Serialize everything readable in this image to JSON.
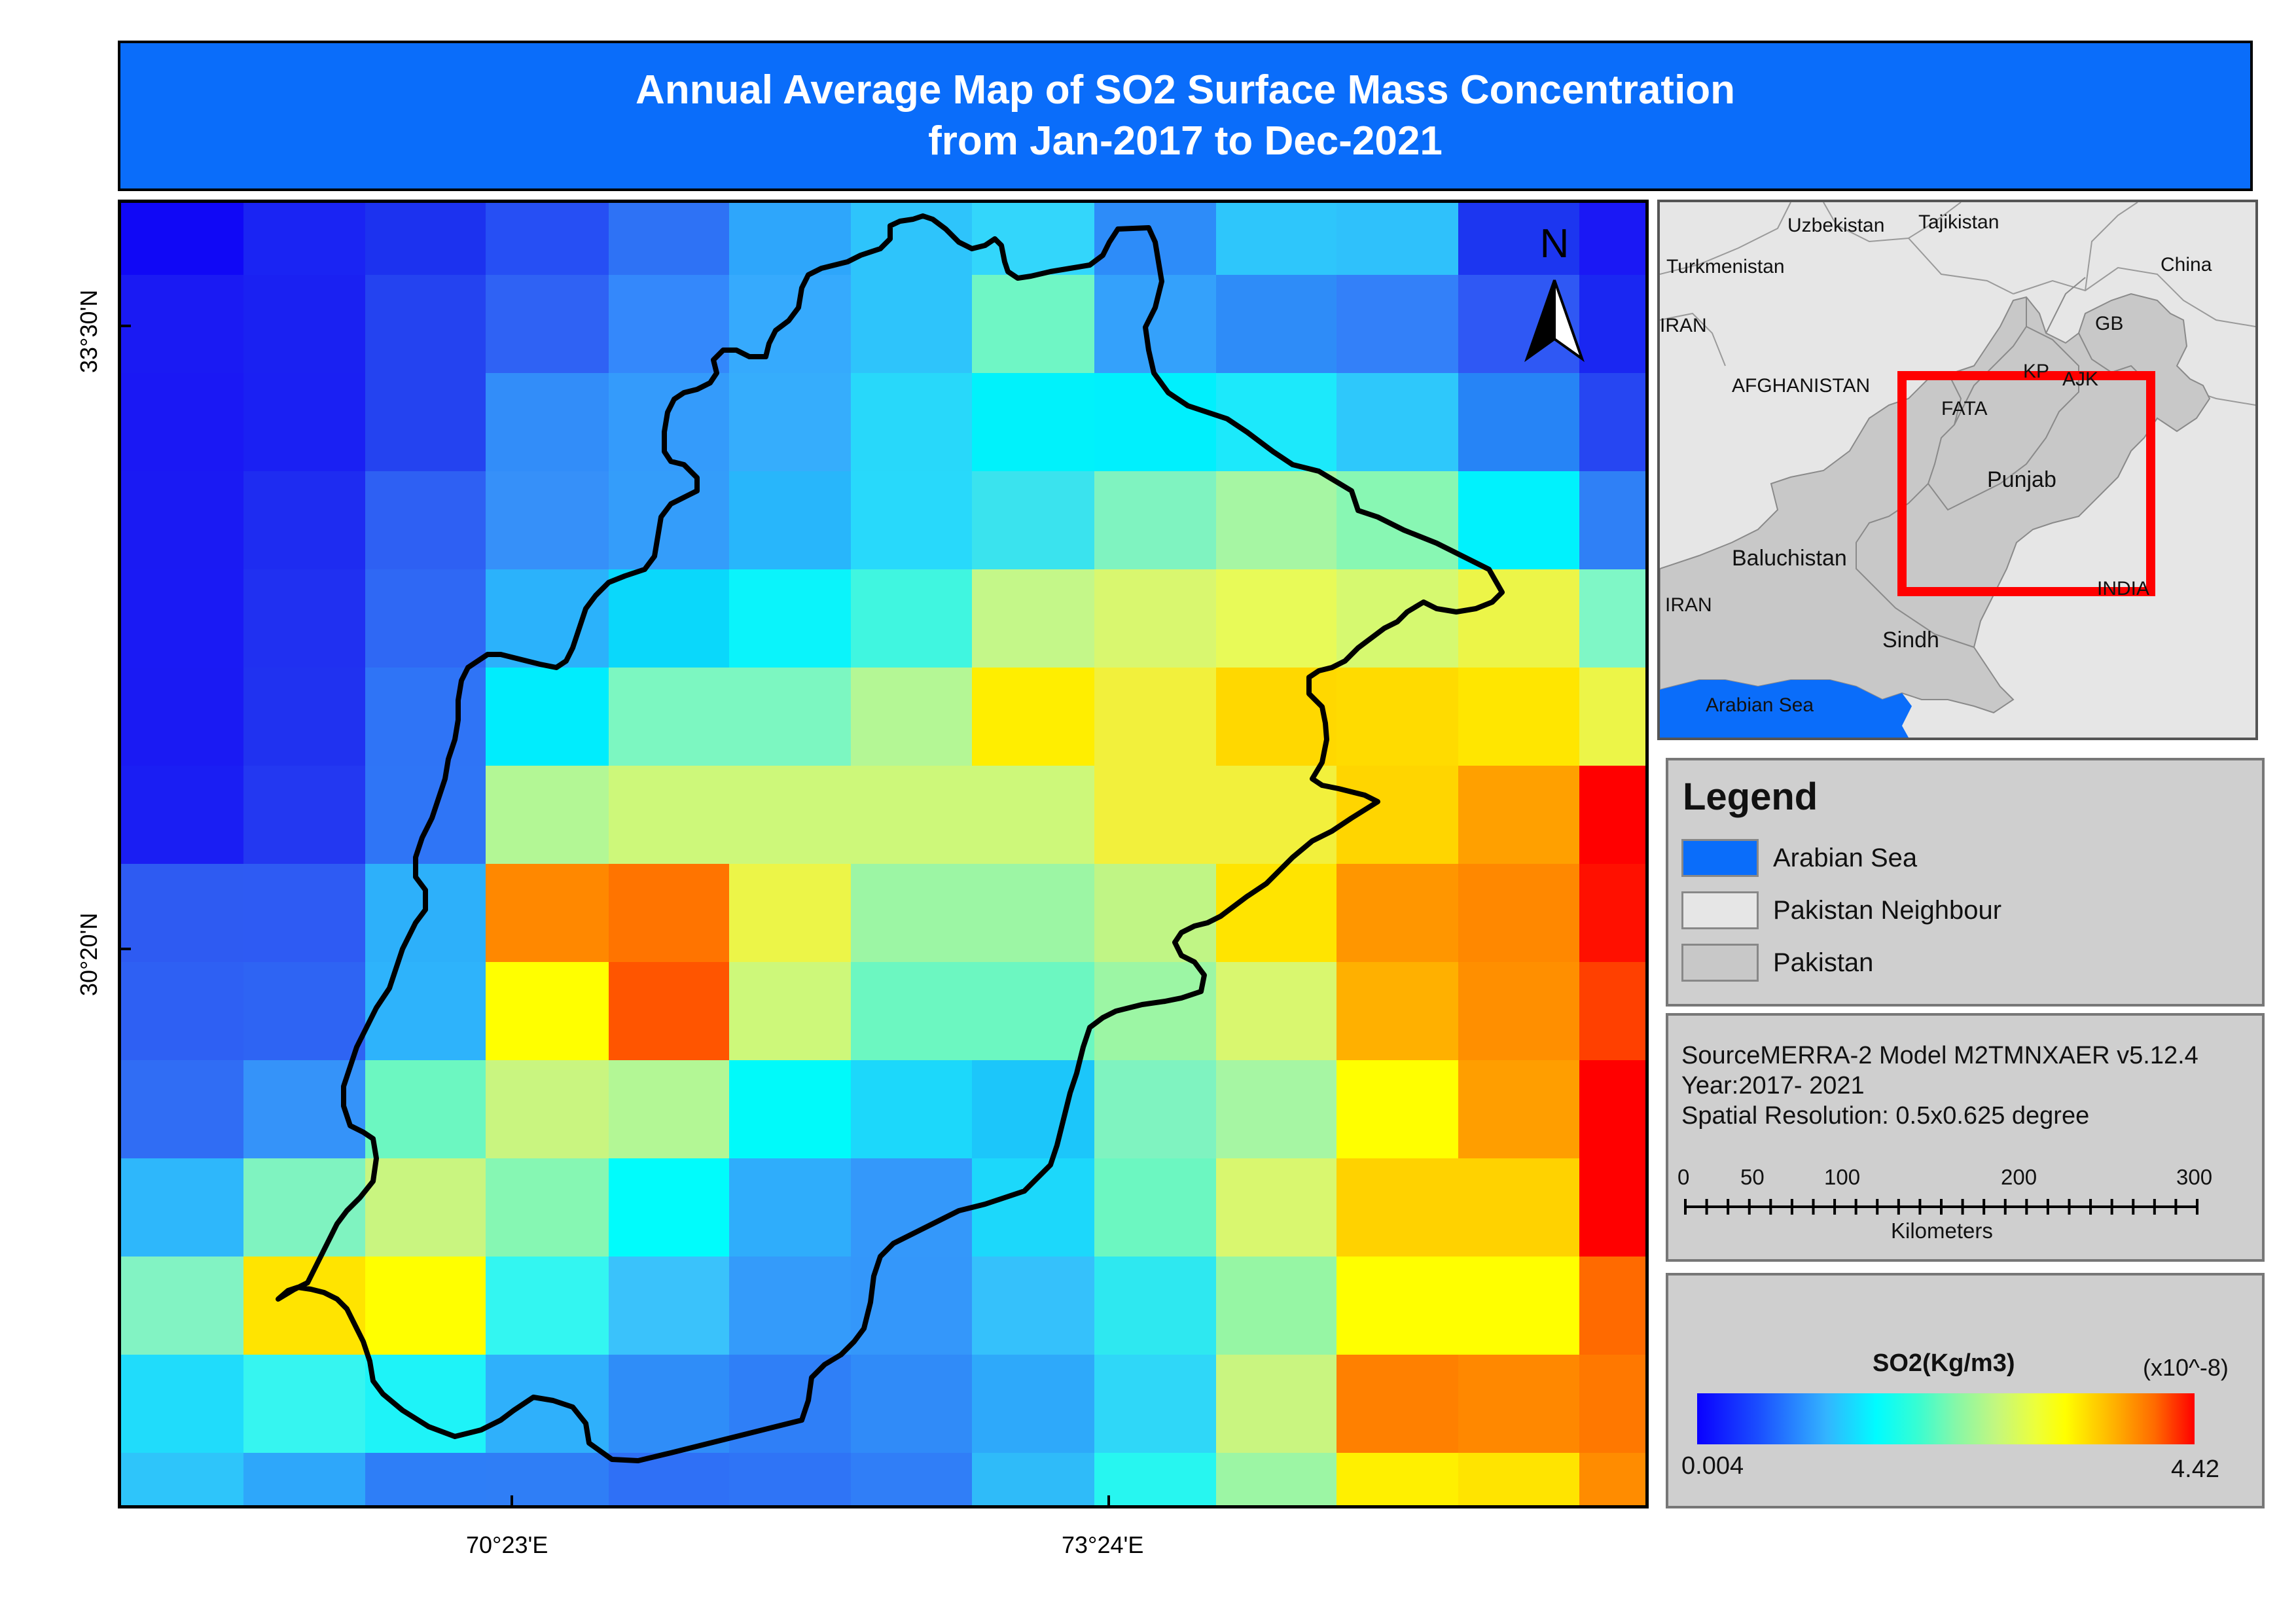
{
  "title": {
    "line1": "Annual Average Map of SO2 Surface Mass Concentration",
    "line2": "from Jan-2017 to Dec-2021"
  },
  "main_map": {
    "north_label": "N",
    "lat_labels": [
      "33°30'N",
      "30°20'N"
    ],
    "lon_labels": [
      "70°23'E",
      "73°24'E"
    ],
    "grid_colors": [
      [
        "#1008f6",
        "#1a24f3",
        "#1c32ef",
        "#264ff4",
        "#2e72f5",
        "#2ea6fb",
        "#2ec4fb",
        "#33d6fb",
        "#2d8cf9",
        "#2ec6fb",
        "#2fc1fb",
        "#1c36f0",
        "#1a18f5"
      ],
      [
        "#1a1af3",
        "#1a21f2",
        "#2443f0",
        "#2f62f4",
        "#3488fb",
        "#36aafd",
        "#2ec4fb",
        "#6ff6c5",
        "#34a1fb",
        "#2e8cf8",
        "#3380f9",
        "#2f58f4",
        "#1a27f2"
      ],
      [
        "#1a18f4",
        "#1a20f3",
        "#2443f0",
        "#328df9",
        "#349bfb",
        "#36adfc",
        "#28d8fa",
        "#00f2fb",
        "#00f0fd",
        "#1ce9fb",
        "#2ec8fb",
        "#2684f6",
        "#2646f2"
      ],
      [
        "#1a1af3",
        "#1e2cf1",
        "#2e60f3",
        "#3690f9",
        "#349dfa",
        "#28b6fb",
        "#28d9fb",
        "#3ae3ee",
        "#7ff3c0",
        "#a6f6a3",
        "#88f7b3",
        "#00f2fd",
        "#2f80f6"
      ],
      [
        "#1a1af4",
        "#2030f1",
        "#2f68f4",
        "#2bb2fb",
        "#0ad8fb",
        "#0af4fb",
        "#40f6e0",
        "#c4f789",
        "#d9f76f",
        "#e8fa58",
        "#d6f970",
        "#ecf548",
        "#7ff7c6"
      ],
      [
        "#1a1af3",
        "#2032f0",
        "#2f74f6",
        "#00edfd",
        "#7cf7c1",
        "#7cf7c1",
        "#b4f795",
        "#ffee00",
        "#f2f03c",
        "#ffd800",
        "#ffdb00",
        "#ffe600",
        "#ecf548"
      ],
      [
        "#1a1ef3",
        "#2338f1",
        "#2f75f6",
        "#b3f795",
        "#cdf87a",
        "#cdf87a",
        "#cdf87a",
        "#cdf87a",
        "#f2f03c",
        "#f2f03c",
        "#ffd500",
        "#ffa000",
        "#ff0000"
      ],
      [
        "#2e5bf2",
        "#2e5bf3",
        "#2db0fa",
        "#ff8800",
        "#ff7400",
        "#ecf548",
        "#9cf6a4",
        "#9cf6a4",
        "#c0f585",
        "#ffe400",
        "#ff9600",
        "#ff8800",
        "#ff1000"
      ],
      [
        "#2e60f3",
        "#2e64f3",
        "#2eb3fb",
        "#ffff00",
        "#ff5500",
        "#cdf87a",
        "#6cf7c1",
        "#6cf7c1",
        "#9cf6a4",
        "#d9f76f",
        "#ffb000",
        "#ff8f00",
        "#ff4000"
      ],
      [
        "#306df4",
        "#3593f9",
        "#6cf7c1",
        "#c9f580",
        "#b3f795",
        "#00fafa",
        "#1cd8fb",
        "#1cc6fa",
        "#7ff3c0",
        "#a6f6a3",
        "#ffff00",
        "#ff9e00",
        "#ff0000"
      ],
      [
        "#2eb7fb",
        "#7ff3c0",
        "#c9f580",
        "#86f7b3",
        "#00fcfc",
        "#2fadfb",
        "#3498fa",
        "#1cd8fb",
        "#6cf7c1",
        "#d9f76f",
        "#ffd200",
        "#ffd200",
        "#ff0000"
      ],
      [
        "#82f3c3",
        "#ffe400",
        "#ffff00",
        "#33f6f1",
        "#3ac2fb",
        "#349bfa",
        "#3497fa",
        "#35c1fb",
        "#2ee8f0",
        "#96f6a4",
        "#ffff00",
        "#ffff00",
        "#ff6a00"
      ],
      [
        "#20dcfb",
        "#36f5f0",
        "#1ef3f8",
        "#2fb0fb",
        "#2f8df8",
        "#2f7ff7",
        "#308bf8",
        "#2ea9fa",
        "#2fd7f8",
        "#c9f580",
        "#ff8000",
        "#ff8800",
        "#ff7800"
      ],
      [
        "#2ec5fa",
        "#2ea7fa",
        "#2e7ef7",
        "#2f7ef6",
        "#2f70f6",
        "#2f74f6",
        "#307ef7",
        "#2fbbf9",
        "#27f6f0",
        "#9cf6a4",
        "#fff000",
        "#ffe400",
        "#ff8c00"
      ]
    ]
  },
  "inset_map": {
    "labels": {
      "uzbekistan": "Uzbekistan",
      "tajikistan": "Tajikistan",
      "turkmenistan": "Turkmenistan",
      "china": "China",
      "gb": "GB",
      "iran_top": "IRAN",
      "kp": "KP",
      "ajk": "AJK",
      "afghanistan": "AFGHANISTAN",
      "fata": "FATA",
      "punjab": "Punjab",
      "baluchistan": "Baluchistan",
      "iran_bottom": "IRAN",
      "india": "INDIA",
      "sindh": "Sindh",
      "arabian_sea": "Arabian Sea"
    },
    "colors": {
      "sea": "#0a6dfa",
      "neighbour": "#e6e6e6",
      "pakistan": "#c8c8c8",
      "frame": "#ff0000"
    }
  },
  "legend": {
    "title": "Legend",
    "items": [
      {
        "label": "Arabian Sea",
        "color": "#0a6dfa"
      },
      {
        "label": "Pakistan Neighbour",
        "color": "#e6e6e6"
      },
      {
        "label": "Pakistan",
        "color": "#c8c8c8"
      }
    ]
  },
  "source": {
    "line1": "SourceMERRA-2 Model M2TMNXAER v5.12.4",
    "line2": "Year:2017- 2021",
    "line3": "Spatial Resolution: 0.5x0.625 degree"
  },
  "scale_bar": {
    "ticks": [
      "0",
      "50",
      "100",
      "200",
      "300"
    ],
    "unit": "Kilometers"
  },
  "colorbar": {
    "title": "SO2(Kg/m3)",
    "unit": "(x10^-8)",
    "min": "0.004",
    "max": "4.42"
  }
}
